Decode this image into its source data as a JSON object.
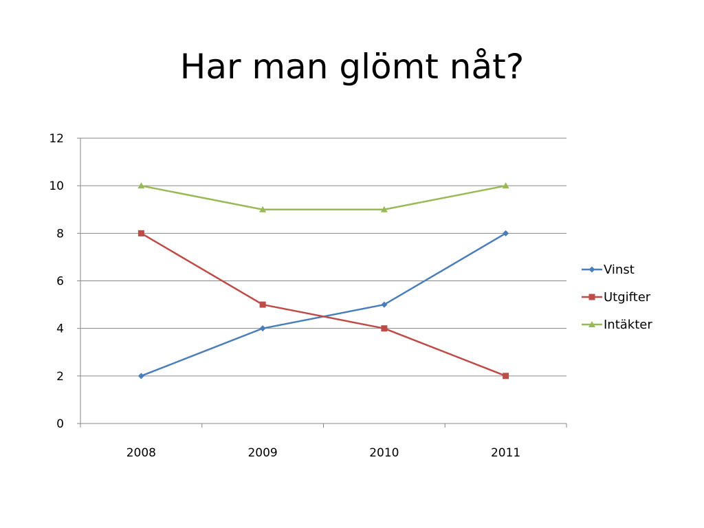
{
  "slide": {
    "title": "Har man glömt nåt?"
  },
  "chart_data": {
    "type": "line",
    "title": "Har man glömt nåt?",
    "xlabel": "",
    "ylabel": "",
    "categories": [
      "2008",
      "2009",
      "2010",
      "2011"
    ],
    "ylim": [
      0,
      12
    ],
    "yticks": [
      0,
      2,
      4,
      6,
      8,
      10,
      12
    ],
    "grid": true,
    "legend_position": "right",
    "series": [
      {
        "name": "Vinst",
        "values": [
          2,
          4,
          5,
          8
        ],
        "color": "#4A7EBB",
        "marker": "diamond"
      },
      {
        "name": "Utgifter",
        "values": [
          8,
          5,
          4,
          2
        ],
        "color": "#BE4B48",
        "marker": "square"
      },
      {
        "name": "Intäkter",
        "values": [
          10,
          9,
          9,
          10
        ],
        "color": "#98B954",
        "marker": "triangle"
      }
    ]
  }
}
